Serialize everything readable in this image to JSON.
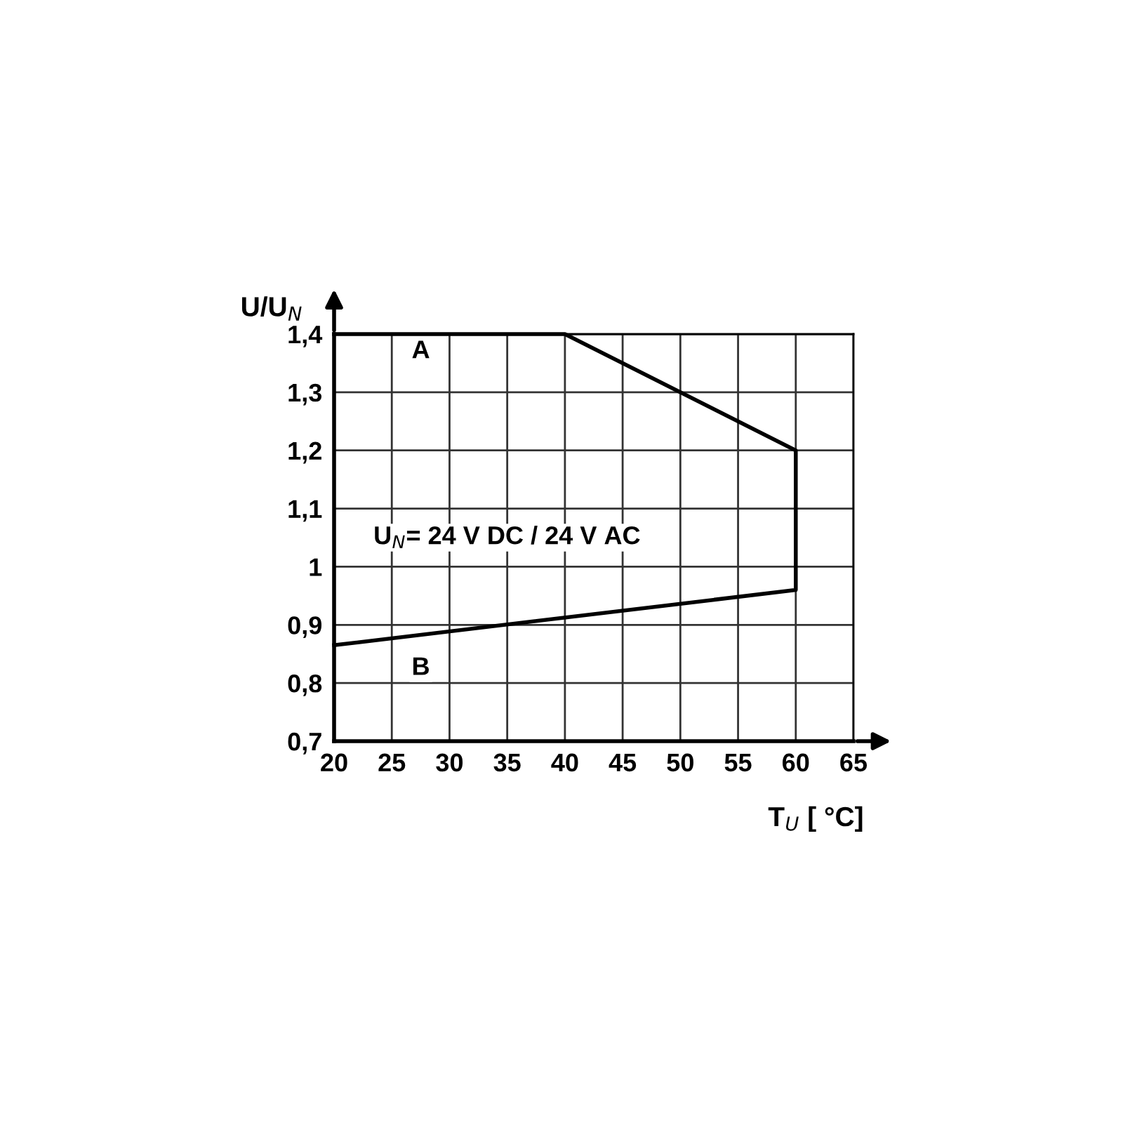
{
  "chart_data": {
    "type": "line",
    "ylabel": "U/U$_{N}$",
    "xlabel": "T$_{U}$ [ °C]",
    "series": [
      {
        "color": "#000000",
        "x": [
          20,
          40,
          60,
          60,
          20
        ],
        "values": [
          1.4,
          1.4,
          1.2,
          0.96,
          0.865
        ]
      }
    ],
    "xlim": [
      20,
      65
    ],
    "ylim": [
      0.7,
      1.4
    ],
    "xticks": [
      20,
      25,
      30,
      35,
      40,
      45,
      50,
      55,
      60,
      65
    ],
    "yticks": [
      {
        "value": 0.7,
        "label": "0,7"
      },
      {
        "value": 0.8,
        "label": "0,8"
      },
      {
        "value": 0.9,
        "label": "0,9"
      },
      {
        "value": 1,
        "label": "1"
      },
      {
        "value": 1.1,
        "label": "1,1"
      },
      {
        "value": 1.2,
        "label": "1,2"
      },
      {
        "value": 1.3,
        "label": "1,3"
      },
      {
        "value": 1.4,
        "label": "1,4"
      }
    ],
    "grid": true,
    "legend": false,
    "marker": "none",
    "line_style": "solid",
    "annotations": [
      "A",
      "B",
      "U$_{N}$= 24 V DC / 24 V AC"
    ]
  }
}
